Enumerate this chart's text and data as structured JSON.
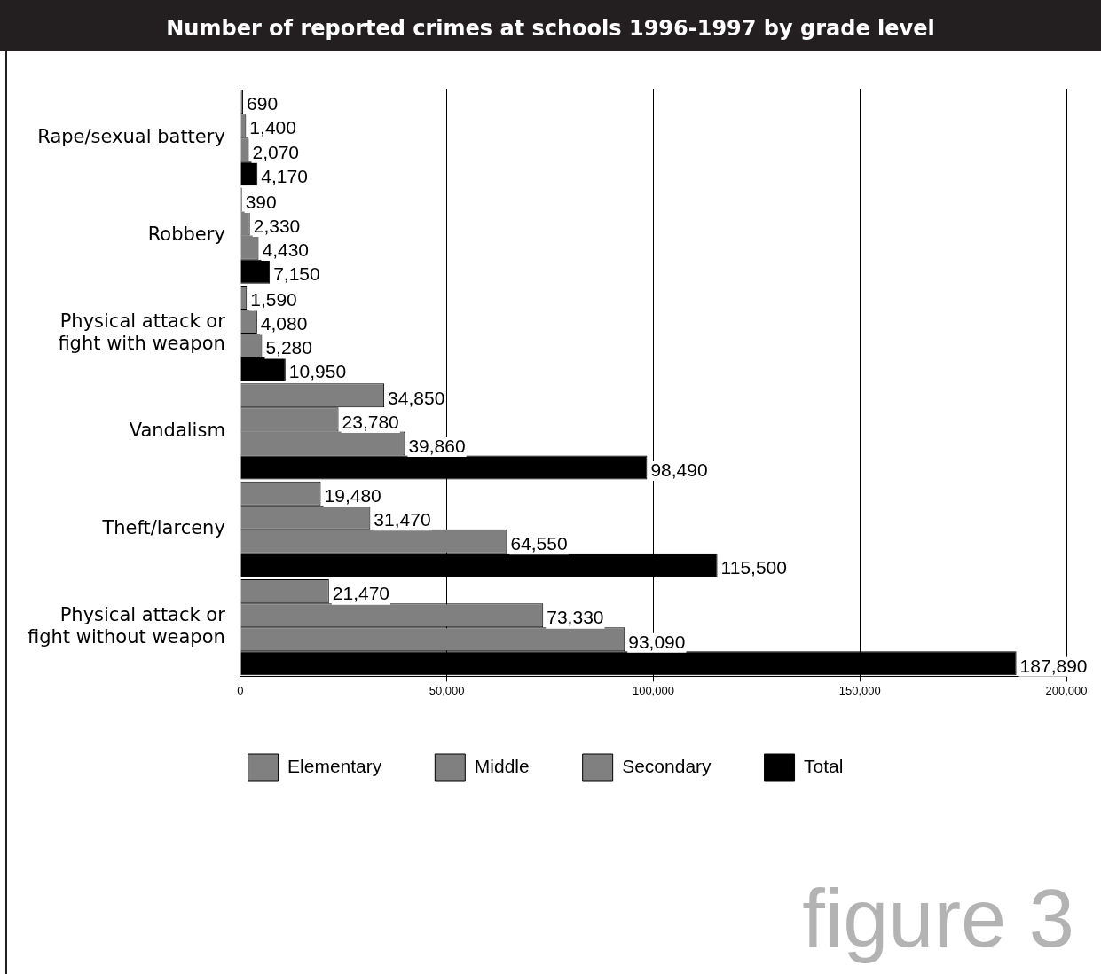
{
  "chart_data": {
    "type": "bar",
    "orientation": "horizontal",
    "title": "Number of reported crimes at schools 1996-1997 by grade level",
    "categories": [
      "Rape/sexual battery",
      "Robbery",
      "Physical attack or fight with weapon",
      "Vandalism",
      "Theft/larceny",
      "Physical attack or fight without weapon"
    ],
    "series": [
      {
        "name": "Elementary",
        "color": "#808080",
        "values": [
          690,
          390,
          1590,
          34850,
          19480,
          21470
        ],
        "value_labels": [
          "690",
          "390",
          "1,590",
          "34,850",
          "19,480",
          "21,470"
        ]
      },
      {
        "name": "Middle",
        "color": "#808080",
        "values": [
          1400,
          2330,
          4080,
          23780,
          31470,
          73330
        ],
        "value_labels": [
          "1,400",
          "2,330",
          "4,080",
          "23,780",
          "31,470",
          "73,330"
        ]
      },
      {
        "name": "Secondary",
        "color": "#808080",
        "values": [
          2070,
          4430,
          5280,
          39860,
          64550,
          93090
        ],
        "value_labels": [
          "2,070",
          "4,430",
          "5,280",
          "39,860",
          "64,550",
          "93,090"
        ]
      },
      {
        "name": "Total",
        "color": "#000000",
        "values": [
          4170,
          7150,
          10950,
          98490,
          115500,
          187890
        ],
        "value_labels": [
          "4,170",
          "7,150",
          "10,950",
          "98,490",
          "115,500",
          "187,890"
        ]
      }
    ],
    "xlim": [
      0,
      200000
    ],
    "xticks": [
      0,
      {
        "value": 50000,
        "label": "50,000"
      },
      {
        "value": 100000,
        "label": "100,000"
      },
      {
        "value": 150000,
        "label": "150,000"
      },
      {
        "value": 200000,
        "label": "200,000"
      }
    ],
    "grid": "x",
    "legend": "bottom",
    "annotations": [
      "figure 3"
    ]
  }
}
